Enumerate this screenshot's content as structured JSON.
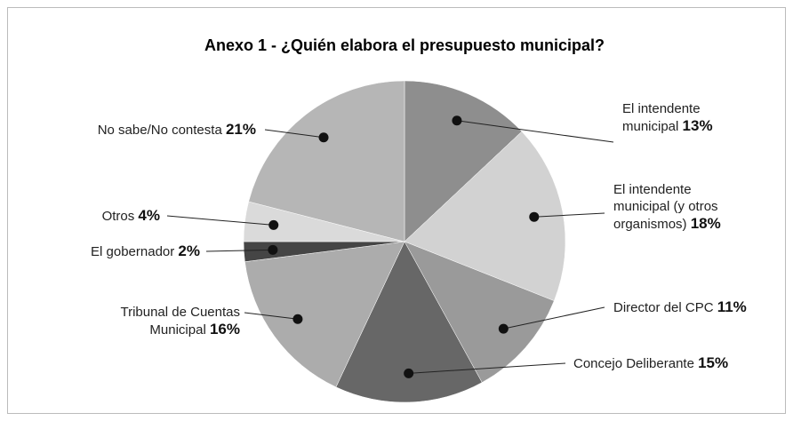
{
  "chart_data": {
    "type": "pie",
    "title": "Anexo 1  -  ¿Quién elabora el presupuesto municipal?",
    "categories": [
      "El intendente municipal",
      "El intendente municipal (y otros organismos)",
      "Director del CPC",
      "Concejo Deliberante",
      "Tribunal de Cuentas Municipal",
      "El gobernador",
      "Otros",
      "No sabe/No contesta"
    ],
    "values": [
      13,
      18,
      11,
      15,
      16,
      2,
      4,
      21
    ],
    "value_labels": [
      "13%",
      "18%",
      "11%",
      "15%",
      "16%",
      "2%",
      "4%",
      "21%"
    ],
    "colors": [
      "#8e8e8e",
      "#d2d2d2",
      "#9a9a9a",
      "#676767",
      "#acacac",
      "#454545",
      "#dadada",
      "#b6b6b6"
    ]
  }
}
